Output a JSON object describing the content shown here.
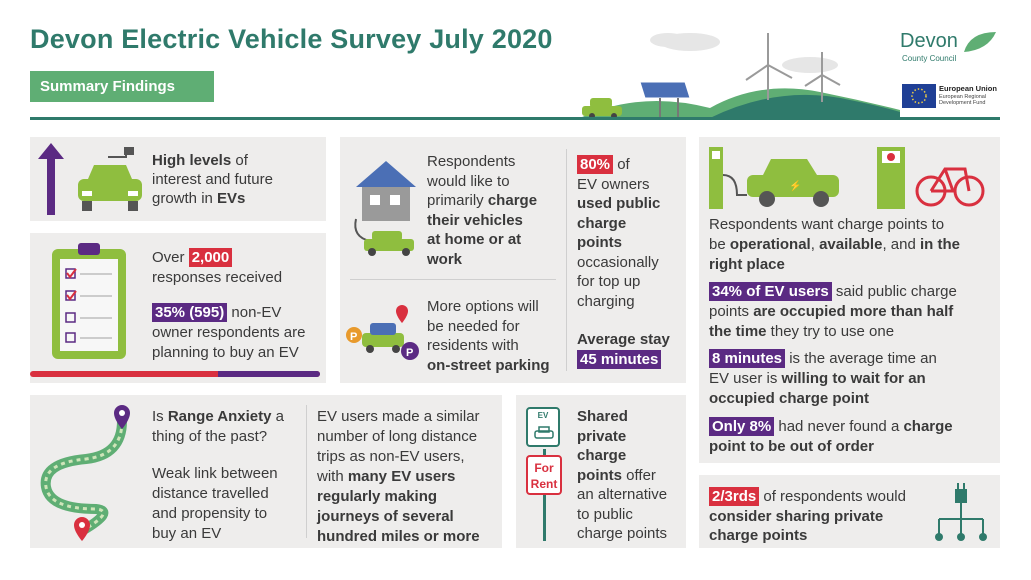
{
  "header": {
    "title": "Devon Electric Vehicle Survey July 2020",
    "subtitle": "Summary Findings",
    "logo_devon": "Devon",
    "logo_council": "County Council",
    "eu_title": "European Union",
    "eu_sub1": "European Regional",
    "eu_sub2": "Development Fund"
  },
  "interest": {
    "line1_b": "High levels",
    "line1": " of",
    "line2": "interest and future",
    "line3": "growth in ",
    "line3_b": "EVs"
  },
  "responses": {
    "prefix": "Over ",
    "count": "2,000",
    "suffix": "responses received",
    "pct": "35% (595)",
    "pct_text1": " non-EV",
    "pct_text2": "owner respondents are",
    "pct_text3": "planning to buy an EV"
  },
  "home_charge": {
    "l1": "Respondents",
    "l2": "would like to",
    "l3": "primarily ",
    "l3_b": "charge",
    "l4_b": "their vehicles",
    "l5_b": "at home or at",
    "l6_b": "work"
  },
  "public_charge": {
    "pct": "80%",
    "pct_suffix": " of",
    "l2": "EV owners",
    "l3_b": "used public",
    "l4_b": "charge",
    "l5_b": "points",
    "l6": "occasionally",
    "l7": "for top up",
    "l8": "charging",
    "stay_label": "Average stay",
    "stay_value": "45 minutes"
  },
  "on_street": {
    "l1": "More options will",
    "l2": "be needed for",
    "l3": "residents with",
    "l4_b": "on-street parking"
  },
  "charge_points": {
    "l1": "Respondents want charge points to",
    "l2": "be ",
    "l2_b1": "operational",
    "l2_m": ", ",
    "l2_b2": "available",
    "l2_e": ", and ",
    "l2_b3": "in the",
    "l3_b": "right place",
    "occ_badge": "34% of EV users",
    "occ_1": " said public charge",
    "occ_2": "points ",
    "occ_2b": "are occupied more than half",
    "occ_3b": "the time",
    "occ_3": " they try to use one",
    "wait_badge": "8 minutes",
    "wait_1": " is the average time an",
    "wait_2": "EV user is ",
    "wait_2b": "willing to wait for an",
    "wait_3b": "occupied charge point",
    "order_badge": "Only 8%",
    "order_1": " had never found a ",
    "order_1b": "charge",
    "order_2b": "point to be out of order"
  },
  "range": {
    "q1": "Is ",
    "q1_b": "Range Anxiety",
    "q1_e": " a",
    "q2": "thing of the past?",
    "w1": "Weak link between",
    "w2": "distance travelled",
    "w3": "and propensity to",
    "w4": "buy an EV"
  },
  "trips": {
    "l1": "EV users made a similar",
    "l2": "number of long distance",
    "l3": "trips as non-EV users,",
    "l4": "with ",
    "l4_b": "many EV users",
    "l5_b": "regularly making",
    "l6_b": "journeys of several",
    "l7_b": "hundred miles or more"
  },
  "shared": {
    "l1_b": "Shared",
    "l2_b": "private",
    "l3_b": "charge",
    "l4_b": "points",
    "l4": " offer",
    "l5": "an alternative",
    "l6": "to public",
    "l7": "charge points",
    "sign_ev": "EV",
    "sign_for": "For",
    "sign_rent": "Rent"
  },
  "sharing": {
    "badge": "2/3rds",
    "l1": " of respondents would",
    "l2_b": "consider sharing private",
    "l3_b": "charge points"
  },
  "colors": {
    "teal": "#2f7a6b",
    "green": "#5fae74",
    "lime": "#8fbe3f",
    "red": "#d9303f",
    "purple": "#5b2a83",
    "panel": "#eeedec"
  }
}
